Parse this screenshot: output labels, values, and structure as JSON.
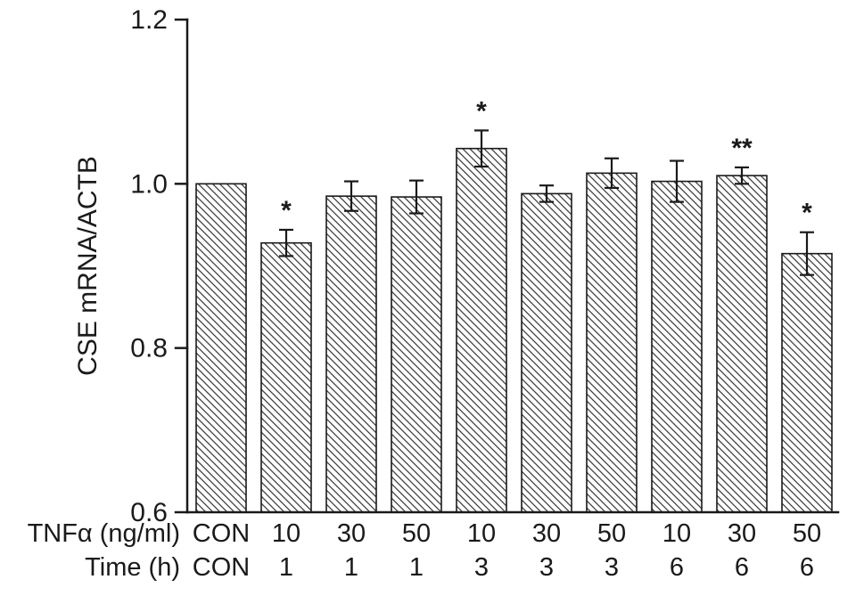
{
  "chart_data": {
    "type": "bar",
    "title": "",
    "ylabel": "CSE mRNA/ACTB",
    "xlabel": "",
    "ylim": [
      0.6,
      1.2
    ],
    "yticks": [
      0.6,
      0.8,
      1.0,
      1.2
    ],
    "grid": false,
    "legend": "none",
    "bar_style": "diagonal-hatch",
    "axis_color": "#1a1a1a",
    "hatch_color": "#3f3f3f",
    "x_axis_rows": [
      {
        "label": "TNFα (ng/ml)",
        "values": [
          "CON",
          "10",
          "30",
          "50",
          "10",
          "30",
          "50",
          "10",
          "30",
          "50"
        ]
      },
      {
        "label": "Time (h)",
        "values": [
          "CON",
          "1",
          "1",
          "1",
          "3",
          "3",
          "3",
          "6",
          "6",
          "6"
        ]
      }
    ],
    "series": [
      {
        "name": "CSE mRNA/ACTB",
        "values": [
          1.0,
          0.928,
          0.985,
          0.984,
          1.043,
          0.988,
          1.013,
          1.003,
          1.01,
          0.915
        ],
        "errors": [
          0,
          0.016,
          0.018,
          0.02,
          0.022,
          0.01,
          0.018,
          0.025,
          0.01,
          0.026
        ],
        "significance": [
          "",
          "*",
          "",
          "",
          "*",
          "",
          "",
          "",
          "**",
          "*"
        ]
      }
    ]
  }
}
